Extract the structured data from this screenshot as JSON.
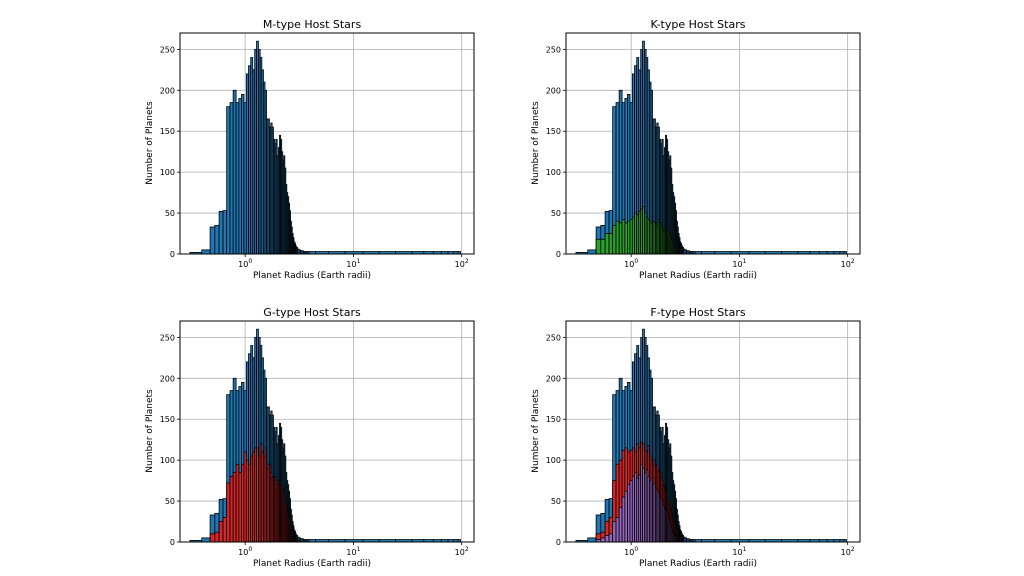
{
  "chart_data": [
    {
      "type": "bar",
      "title": "M-type Host Stars",
      "xlabel": "Planet Radius (Earth radii)",
      "ylabel": "Number of Planets",
      "xscale": "log",
      "xlim": [
        0.25,
        130
      ],
      "ylim": [
        0,
        270
      ],
      "grid": true,
      "x_tick_labels": [
        "10^0",
        "10^1",
        "10^2"
      ],
      "y_tick_labels": [
        "0",
        "50",
        "100",
        "150",
        "200",
        "250"
      ],
      "series": [
        {
          "color": "#1f77b4",
          "bins": "all"
        },
        {
          "color": "#1f77b4",
          "bins": "subset"
        }
      ]
    },
    {
      "type": "bar",
      "title": "K-type Host Stars",
      "xlabel": "Planet Radius (Earth radii)",
      "ylabel": "Number of Planets",
      "xscale": "log",
      "xlim": [
        0.25,
        130
      ],
      "ylim": [
        0,
        270
      ],
      "grid": true,
      "x_tick_labels": [
        "10^0",
        "10^1",
        "10^2"
      ],
      "y_tick_labels": [
        "0",
        "50",
        "100",
        "150",
        "200",
        "250"
      ],
      "series": [
        {
          "color": "#1f77b4",
          "bins": "all"
        },
        {
          "color": "#2ca02c",
          "bins": "subset"
        }
      ]
    },
    {
      "type": "bar",
      "title": "G-type Host Stars",
      "xlabel": "Planet Radius (Earth radii)",
      "ylabel": "Number of Planets",
      "xscale": "log",
      "xlim": [
        0.25,
        130
      ],
      "ylim": [
        0,
        270
      ],
      "grid": true,
      "x_tick_labels": [
        "10^0",
        "10^1",
        "10^2"
      ],
      "y_tick_labels": [
        "0",
        "50",
        "100",
        "150",
        "200",
        "250"
      ],
      "series": [
        {
          "color": "#1f77b4",
          "bins": "all"
        },
        {
          "color": "#d62728",
          "bins": "subset"
        }
      ]
    },
    {
      "type": "bar",
      "title": "F-type Host Stars",
      "xlabel": "Planet Radius (Earth radii)",
      "ylabel": "Number of Planets",
      "xscale": "log",
      "xlim": [
        0.25,
        130
      ],
      "ylim": [
        0,
        270
      ],
      "grid": true,
      "x_tick_labels": [
        "10^0",
        "10^1",
        "10^2"
      ],
      "y_tick_labels": [
        "0",
        "50",
        "100",
        "150",
        "200",
        "250"
      ],
      "series": [
        {
          "color": "#1f77b4",
          "bins": "all"
        },
        {
          "color": "#d62728",
          "bins": "subset-1"
        },
        {
          "color": "#9467bd",
          "bins": "subset-2"
        }
      ]
    }
  ],
  "histogram": {
    "bin_centers": [
      0.35,
      0.45,
      0.5,
      0.55,
      0.6,
      0.65,
      0.7,
      0.75,
      0.8,
      0.85,
      0.9,
      0.95,
      1.0,
      1.05,
      1.1,
      1.15,
      1.2,
      1.25,
      1.3,
      1.35,
      1.4,
      1.45,
      1.5,
      1.55,
      1.6,
      1.65,
      1.7,
      1.75,
      1.8,
      1.85,
      1.9,
      1.95,
      2.0,
      2.05,
      2.1,
      2.15,
      2.2,
      2.25,
      2.3,
      2.35,
      2.4,
      2.45,
      2.5,
      2.55,
      2.6,
      2.65,
      2.7,
      2.75,
      2.8,
      2.85,
      2.9,
      2.95,
      3.0,
      3.1,
      3.2,
      3.3,
      3.4,
      3.5,
      3.6,
      3.7,
      3.8,
      4.0,
      5.0,
      7.0,
      10.0,
      15.0,
      20.0,
      30.0,
      40.0,
      50.0,
      60.0,
      70.0,
      80.0,
      90.0,
      95.0
    ],
    "all_counts": [
      2,
      5,
      33,
      35,
      52,
      53,
      180,
      185,
      200,
      185,
      190,
      195,
      185,
      220,
      230,
      240,
      225,
      250,
      260,
      250,
      240,
      225,
      210,
      200,
      165,
      165,
      155,
      160,
      155,
      140,
      135,
      140,
      120,
      130,
      145,
      140,
      125,
      115,
      120,
      105,
      85,
      75,
      70,
      62,
      53,
      40,
      33,
      25,
      20,
      15,
      13,
      10,
      8,
      6,
      5,
      4,
      4,
      3,
      3,
      3,
      3,
      3,
      3,
      3,
      3,
      3,
      3,
      3,
      3,
      3,
      3,
      3,
      3,
      3,
      3
    ],
    "k_counts": [
      0,
      0,
      18,
      18,
      25,
      25,
      35,
      40,
      38,
      42,
      38,
      40,
      42,
      45,
      50,
      48,
      52,
      55,
      58,
      50,
      45,
      42,
      40,
      38,
      40,
      38,
      35,
      38,
      42,
      38,
      35,
      30,
      28,
      30,
      33,
      30,
      28,
      25,
      22,
      18,
      15,
      10,
      8,
      5,
      3,
      2,
      1,
      0,
      0,
      0,
      0,
      0,
      0,
      0,
      0,
      0,
      0,
      0,
      0,
      0,
      0,
      0,
      0,
      0,
      0,
      0,
      0,
      0,
      0,
      0,
      0,
      0,
      0,
      0,
      0
    ],
    "g_counts": [
      0,
      0,
      10,
      12,
      25,
      30,
      72,
      80,
      85,
      95,
      85,
      95,
      110,
      100,
      95,
      105,
      110,
      115,
      115,
      105,
      120,
      110,
      105,
      115,
      90,
      95,
      95,
      85,
      80,
      75,
      80,
      75,
      65,
      70,
      75,
      70,
      60,
      65,
      55,
      50,
      45,
      35,
      30,
      25,
      20,
      15,
      12,
      10,
      8,
      6,
      5,
      4,
      3,
      2,
      1,
      0,
      0,
      0,
      0,
      0,
      0,
      0,
      0,
      0,
      0,
      0,
      0,
      0,
      0,
      0,
      0,
      0,
      0,
      0,
      0
    ],
    "f_red_counts": [
      0,
      0,
      10,
      12,
      25,
      30,
      75,
      95,
      100,
      112,
      115,
      110,
      112,
      115,
      110,
      120,
      115,
      122,
      120,
      112,
      110,
      118,
      105,
      100,
      95,
      100,
      92,
      95,
      88,
      85,
      80,
      75,
      70,
      65,
      60,
      55,
      50,
      45,
      40,
      35,
      30,
      25,
      20,
      15,
      12,
      10,
      8,
      6,
      5,
      4,
      3,
      2,
      1,
      0,
      0,
      0,
      0,
      0,
      0,
      0,
      0,
      0,
      0,
      0,
      0,
      0,
      0,
      0,
      0,
      0,
      0,
      0,
      0,
      0,
      0
    ],
    "f_purple_counts": [
      0,
      0,
      3,
      5,
      8,
      10,
      25,
      30,
      42,
      55,
      62,
      70,
      75,
      80,
      85,
      78,
      82,
      95,
      90,
      85,
      88,
      80,
      75,
      78,
      70,
      72,
      65,
      62,
      60,
      55,
      52,
      48,
      45,
      40,
      38,
      32,
      28,
      24,
      20,
      16,
      12,
      10,
      8,
      6,
      4,
      3,
      2,
      1,
      0,
      0,
      0,
      0,
      0,
      0,
      0,
      0,
      0,
      0,
      0,
      0,
      0,
      0,
      0,
      0,
      0,
      0,
      0,
      0,
      0,
      0,
      0,
      0,
      0,
      0,
      0
    ]
  }
}
